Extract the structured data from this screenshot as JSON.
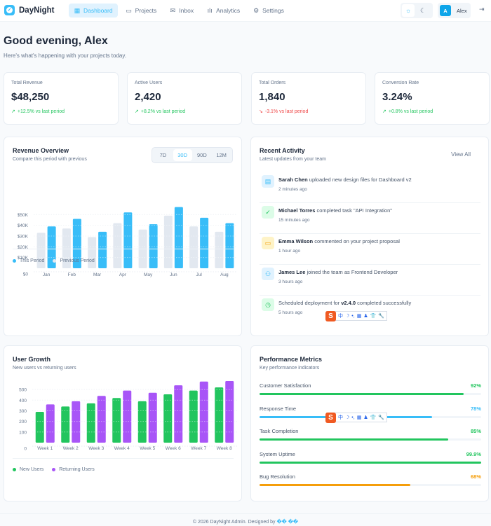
{
  "app": {
    "name": "DayNight",
    "user_initial": "A",
    "user_name": "Alex"
  },
  "nav": [
    {
      "label": "Dashboard",
      "icon": "grid-icon",
      "active": true
    },
    {
      "label": "Projects",
      "icon": "folder-icon",
      "active": false
    },
    {
      "label": "Inbox",
      "icon": "mail-icon",
      "active": false
    },
    {
      "label": "Analytics",
      "icon": "bar-chart-icon",
      "active": false
    },
    {
      "label": "Settings",
      "icon": "gear-icon",
      "active": false
    }
  ],
  "theme": {
    "light_icon": "sun-icon",
    "dark_icon": "moon-icon",
    "active": "light"
  },
  "greeting": {
    "title": "Good evening, Alex",
    "subtitle": "Here's what's happening with your projects today."
  },
  "stats": [
    {
      "label": "Total Revenue",
      "value": "$48,250",
      "change": "+12.5% vs last period",
      "trend": "up"
    },
    {
      "label": "Active Users",
      "value": "2,420",
      "change": "+8.2% vs last period",
      "trend": "up"
    },
    {
      "label": "Total Orders",
      "value": "1,840",
      "change": "-3.1% vs last period",
      "trend": "down"
    },
    {
      "label": "Conversion Rate",
      "value": "3.24%",
      "change": "+0.8% vs last period",
      "trend": "up"
    }
  ],
  "revenue": {
    "title": "Revenue Overview",
    "subtitle": "Compare this period with previous",
    "ranges": [
      "7D",
      "30D",
      "90D",
      "12M"
    ],
    "active_range": "30D"
  },
  "activity": {
    "title": "Recent Activity",
    "subtitle": "Latest updates from your team",
    "view_all": "View All",
    "items": [
      {
        "actor": "Sarah Chen",
        "text": " uploaded new design files for Dashboard v2",
        "time": "2 minutes ago",
        "icon": "file-icon",
        "color": "#38bdf8",
        "bg": "#e0f2fe"
      },
      {
        "actor": "Michael Torres",
        "text": " completed task \"API Integration\"",
        "time": "15 minutes ago",
        "icon": "check-circle-icon",
        "color": "#22c55e",
        "bg": "#dcfce7"
      },
      {
        "actor": "Emma Wilson",
        "text": " commented on your project proposal",
        "time": "1 hour ago",
        "icon": "comment-icon",
        "color": "#f59e0b",
        "bg": "#fef3c7"
      },
      {
        "actor": "James Lee",
        "text": " joined the team as Frontend Developer",
        "time": "3 hours ago",
        "icon": "user-plus-icon",
        "color": "#38bdf8",
        "bg": "#e0f2fe"
      },
      {
        "actor": "",
        "pre": "Scheduled deployment for ",
        "bold": "v2.4.0",
        "text": " completed successfully",
        "time": "5 hours ago",
        "icon": "clock-icon",
        "color": "#22c55e",
        "bg": "#dcfce7"
      }
    ]
  },
  "growth": {
    "title": "User Growth",
    "subtitle": "New users vs returning users"
  },
  "performance": {
    "title": "Performance Metrics",
    "subtitle": "Key performance indicators",
    "metrics": [
      {
        "label": "Customer Satisfaction",
        "value": "92%",
        "percent": 92,
        "color": "#22c55e"
      },
      {
        "label": "Response Time",
        "value": "78%",
        "percent": 78,
        "color": "#38bdf8"
      },
      {
        "label": "Task Completion",
        "value": "85%",
        "percent": 85,
        "color": "#22c55e"
      },
      {
        "label": "System Uptime",
        "value": "99.9%",
        "percent": 99.9,
        "color": "#22c55e"
      },
      {
        "label": "Bug Resolution",
        "value": "68%",
        "percent": 68,
        "color": "#f59e0b"
      }
    ]
  },
  "ime_toolbar": {
    "logo": "S",
    "items": [
      "中",
      "☽",
      "•,",
      "▦",
      "♟",
      "👕",
      "🔧"
    ]
  },
  "footer": {
    "text": "© 2026 DayNight Admin. Designed by ",
    "brand": "�� ��"
  },
  "chart_data": [
    {
      "type": "bar",
      "title": "Revenue Overview",
      "categories": [
        "Jan",
        "Feb",
        "Mar",
        "Apr",
        "May",
        "Jun",
        "Jul",
        "Aug"
      ],
      "series": [
        {
          "name": "This Period",
          "color": "#38bdf8",
          "values": [
            39000,
            46000,
            34000,
            52000,
            41000,
            57000,
            47000,
            42000
          ]
        },
        {
          "name": "Previous Period",
          "color": "#e2e8f0",
          "values": [
            33000,
            37000,
            29000,
            42000,
            36000,
            49000,
            39000,
            34000
          ]
        }
      ],
      "yticks": [
        "$0",
        "$10K",
        "$20K",
        "$30K",
        "$40K",
        "$50K"
      ],
      "ylim": [
        0,
        60000
      ],
      "grid": true,
      "legend": "bottom-left"
    },
    {
      "type": "bar",
      "title": "User Growth",
      "categories": [
        "Week 1",
        "Week 2",
        "Week 3",
        "Week 4",
        "Week 5",
        "Week 6",
        "Week 7",
        "Week 8"
      ],
      "series": [
        {
          "name": "New Users",
          "color": "#22c55e",
          "values": [
            290,
            340,
            370,
            420,
            390,
            455,
            490,
            520
          ]
        },
        {
          "name": "Returning Users",
          "color": "#a855f7",
          "values": [
            360,
            390,
            440,
            490,
            470,
            540,
            575,
            580
          ]
        }
      ],
      "yticks": [
        "0",
        "100",
        "200",
        "300",
        "400",
        "500"
      ],
      "ylim": [
        0,
        600
      ],
      "grid": true,
      "legend": "bottom-left"
    }
  ]
}
